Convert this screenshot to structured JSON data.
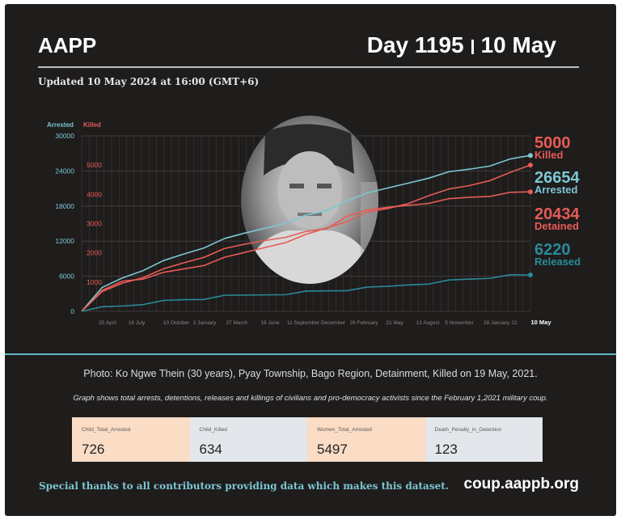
{
  "header": {
    "org": "AAPP",
    "day": "Day 1195",
    "date": "10 May"
  },
  "updated": "Updated 10 May 2024 at 16:00 (GMT+6)",
  "chart_data": {
    "type": "line",
    "left_axis_label": "Arrested",
    "right_axis_label": "Killed",
    "left_ticks": [
      0,
      6000,
      12000,
      18000,
      24000,
      30000
    ],
    "right_ticks": [
      1000,
      2000,
      3000,
      4000,
      5000
    ],
    "left_ylim": [
      0,
      30000
    ],
    "right_ylim": [
      0,
      6000
    ],
    "x_ticks": [
      "25 April",
      "18 July",
      "10 October",
      "2 January",
      "27 March",
      "19 June",
      "11 September",
      "December",
      "26 February",
      "21 May",
      "13 August",
      "5 November",
      "28 January",
      "21",
      "10 May"
    ],
    "series": [
      {
        "name": "Killed",
        "axis": "right",
        "color": "#e65c55",
        "final": "5000",
        "values": [
          0,
          700,
          1050,
          1150,
          1300,
          1450,
          1600,
          1800,
          2000,
          2200,
          2400,
          2600,
          2850,
          3100,
          3350,
          3500,
          3700,
          4000,
          4150,
          4300,
          4500,
          4700,
          5000
        ]
      },
      {
        "name": "Arrested",
        "axis": "left",
        "color": "#7cc7d3",
        "final": "26654",
        "values": [
          0,
          4000,
          5800,
          7200,
          8500,
          9800,
          11000,
          12200,
          13300,
          14300,
          15300,
          16300,
          17200,
          19000,
          20000,
          21000,
          22000,
          23000,
          23700,
          24300,
          25000,
          25800,
          26654
        ]
      },
      {
        "name": "Detained",
        "axis": "left",
        "color": "#e65c55",
        "final": "20434",
        "values": [
          0,
          3300,
          4900,
          6000,
          7100,
          8300,
          9400,
          10500,
          11400,
          12200,
          12900,
          13500,
          14100,
          16400,
          17100,
          17700,
          18200,
          18700,
          19100,
          19500,
          19800,
          20100,
          20434
        ]
      },
      {
        "name": "Released",
        "axis": "left",
        "color": "#2a8a98",
        "final": "6220",
        "values": [
          0,
          700,
          1000,
          1400,
          1700,
          2000,
          2200,
          2500,
          2700,
          2900,
          3100,
          3300,
          3500,
          3700,
          3900,
          4200,
          4600,
          4900,
          5200,
          5500,
          5800,
          6000,
          6220
        ]
      }
    ]
  },
  "caption": "Photo: Ko Ngwe Thein (30 years), Pyay Township, Bago Region, Detainment, Killed on 19 May, 2021.",
  "note": "Graph shows total arrests, detentions, releases and killings of civilians and pro-democracy activists since the February 1,2021 military coup.",
  "stats": [
    {
      "label": "Child_Total_Arrested",
      "value": "726",
      "bg": "#fbdcc4"
    },
    {
      "label": "Child_Killed",
      "value": "634",
      "bg": "#e3e6ea"
    },
    {
      "label": "Women_Total_Arrested",
      "value": "5497",
      "bg": "#fbdcc4"
    },
    {
      "label": "Death_Penalty_in_Detention",
      "value": "123",
      "bg": "#e3e6ea"
    }
  ],
  "footer": {
    "thanks": "Special thanks to all contributors providing data which makes this dataset.",
    "site": "coup.aappb.org"
  }
}
